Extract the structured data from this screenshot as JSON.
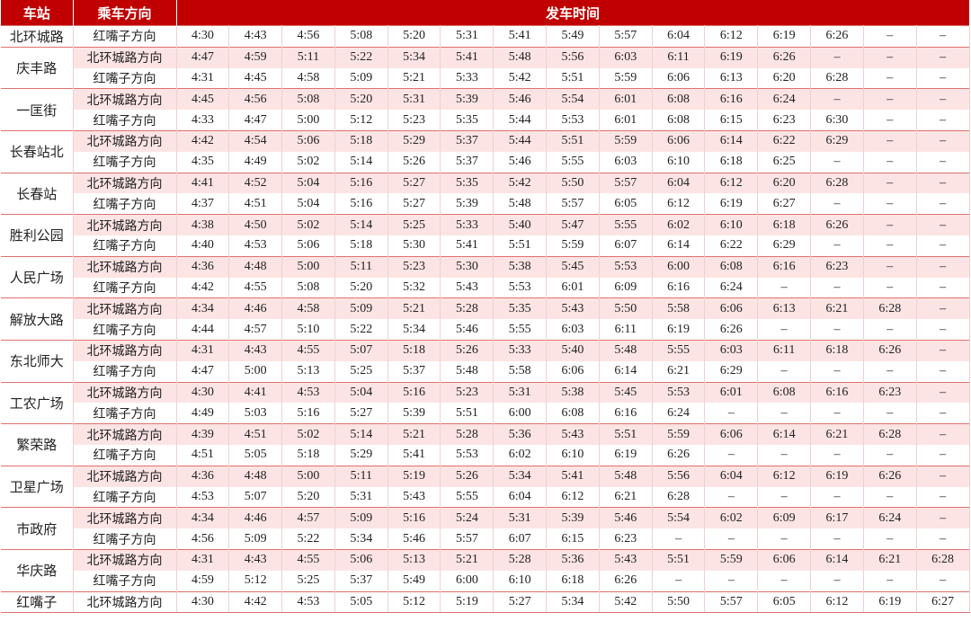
{
  "header": {
    "station": "车站",
    "direction": "乘车方向",
    "times": "发车时间"
  },
  "stations": [
    {
      "name": "北环城路",
      "rows": [
        {
          "direction": "红嘴子方向",
          "times": [
            "4:30",
            "4:43",
            "4:56",
            "5:08",
            "5:20",
            "5:31",
            "5:41",
            "5:49",
            "5:57",
            "6:04",
            "6:12",
            "6:19",
            "6:26",
            "–",
            "–"
          ]
        }
      ]
    },
    {
      "name": "庆丰路",
      "rows": [
        {
          "direction": "北环城路方向",
          "times": [
            "4:47",
            "4:59",
            "5:11",
            "5:22",
            "5:34",
            "5:41",
            "5:48",
            "5:56",
            "6:03",
            "6:11",
            "6:19",
            "6:26",
            "–",
            "–",
            "–"
          ]
        },
        {
          "direction": "红嘴子方向",
          "times": [
            "4:31",
            "4:45",
            "4:58",
            "5:09",
            "5:21",
            "5:33",
            "5:42",
            "5:51",
            "5:59",
            "6:06",
            "6:13",
            "6:20",
            "6:28",
            "–",
            "–"
          ]
        }
      ]
    },
    {
      "name": "一匡街",
      "rows": [
        {
          "direction": "北环城路方向",
          "times": [
            "4:45",
            "4:56",
            "5:08",
            "5:20",
            "5:31",
            "5:39",
            "5:46",
            "5:54",
            "6:01",
            "6:08",
            "6:16",
            "6:24",
            "–",
            "–",
            "–"
          ]
        },
        {
          "direction": "红嘴子方向",
          "times": [
            "4:33",
            "4:47",
            "5:00",
            "5:12",
            "5:23",
            "5:35",
            "5:44",
            "5:53",
            "6:01",
            "6:08",
            "6:15",
            "6:23",
            "6:30",
            "–",
            "–"
          ]
        }
      ]
    },
    {
      "name": "长春站北",
      "rows": [
        {
          "direction": "北环城路方向",
          "times": [
            "4:42",
            "4:54",
            "5:06",
            "5:18",
            "5:29",
            "5:37",
            "5:44",
            "5:51",
            "5:59",
            "6:06",
            "6:14",
            "6:22",
            "6:29",
            "–",
            "–"
          ]
        },
        {
          "direction": "红嘴子方向",
          "times": [
            "4:35",
            "4:49",
            "5:02",
            "5:14",
            "5:26",
            "5:37",
            "5:46",
            "5:55",
            "6:03",
            "6:10",
            "6:18",
            "6:25",
            "–",
            "–",
            "–"
          ]
        }
      ]
    },
    {
      "name": "长春站",
      "rows": [
        {
          "direction": "北环城路方向",
          "times": [
            "4:41",
            "4:52",
            "5:04",
            "5:16",
            "5:27",
            "5:35",
            "5:42",
            "5:50",
            "5:57",
            "6:04",
            "6:12",
            "6:20",
            "6:28",
            "–",
            "–"
          ]
        },
        {
          "direction": "红嘴子方向",
          "times": [
            "4:37",
            "4:51",
            "5:04",
            "5:16",
            "5:27",
            "5:39",
            "5:48",
            "5:57",
            "6:05",
            "6:12",
            "6:19",
            "6:27",
            "–",
            "–",
            "–"
          ]
        }
      ]
    },
    {
      "name": "胜利公园",
      "rows": [
        {
          "direction": "北环城路方向",
          "times": [
            "4:38",
            "4:50",
            "5:02",
            "5:14",
            "5:25",
            "5:33",
            "5:40",
            "5:47",
            "5:55",
            "6:02",
            "6:10",
            "6:18",
            "6:26",
            "–",
            "–"
          ]
        },
        {
          "direction": "红嘴子方向",
          "times": [
            "4:40",
            "4:53",
            "5:06",
            "5:18",
            "5:30",
            "5:41",
            "5:51",
            "5:59",
            "6:07",
            "6:14",
            "6:22",
            "6:29",
            "–",
            "–",
            "–"
          ]
        }
      ]
    },
    {
      "name": "人民广场",
      "rows": [
        {
          "direction": "北环城路方向",
          "times": [
            "4:36",
            "4:48",
            "5:00",
            "5:11",
            "5:23",
            "5:30",
            "5:38",
            "5:45",
            "5:53",
            "6:00",
            "6:08",
            "6:16",
            "6:23",
            "–",
            "–"
          ]
        },
        {
          "direction": "红嘴子方向",
          "times": [
            "4:42",
            "4:55",
            "5:08",
            "5:20",
            "5:32",
            "5:43",
            "5:53",
            "6:01",
            "6:09",
            "6:16",
            "6:24",
            "–",
            "–",
            "–",
            "–"
          ]
        }
      ]
    },
    {
      "name": "解放大路",
      "rows": [
        {
          "direction": "北环城路方向",
          "times": [
            "4:34",
            "4:46",
            "4:58",
            "5:09",
            "5:21",
            "5:28",
            "5:35",
            "5:43",
            "5:50",
            "5:58",
            "6:06",
            "6:13",
            "6:21",
            "6:28",
            "–"
          ]
        },
        {
          "direction": "红嘴子方向",
          "times": [
            "4:44",
            "4:57",
            "5:10",
            "5:22",
            "5:34",
            "5:46",
            "5:55",
            "6:03",
            "6:11",
            "6:19",
            "6:26",
            "–",
            "–",
            "–",
            "–"
          ]
        }
      ]
    },
    {
      "name": "东北师大",
      "rows": [
        {
          "direction": "北环城路方向",
          "times": [
            "4:31",
            "4:43",
            "4:55",
            "5:07",
            "5:18",
            "5:26",
            "5:33",
            "5:40",
            "5:48",
            "5:55",
            "6:03",
            "6:11",
            "6:18",
            "6:26",
            "–"
          ]
        },
        {
          "direction": "红嘴子方向",
          "times": [
            "4:47",
            "5:00",
            "5:13",
            "5:25",
            "5:37",
            "5:48",
            "5:58",
            "6:06",
            "6:14",
            "6:21",
            "6:29",
            "–",
            "–",
            "–",
            "–"
          ]
        }
      ]
    },
    {
      "name": "工农广场",
      "rows": [
        {
          "direction": "北环城路方向",
          "times": [
            "4:30",
            "4:41",
            "4:53",
            "5:04",
            "5:16",
            "5:23",
            "5:31",
            "5:38",
            "5:45",
            "5:53",
            "6:01",
            "6:08",
            "6:16",
            "6:23",
            "–"
          ]
        },
        {
          "direction": "红嘴子方向",
          "times": [
            "4:49",
            "5:03",
            "5:16",
            "5:27",
            "5:39",
            "5:51",
            "6:00",
            "6:08",
            "6:16",
            "6:24",
            "–",
            "–",
            "–",
            "–",
            "–"
          ]
        }
      ]
    },
    {
      "name": "繁荣路",
      "rows": [
        {
          "direction": "北环城路方向",
          "times": [
            "4:39",
            "4:51",
            "5:02",
            "5:14",
            "5:21",
            "5:28",
            "5:36",
            "5:43",
            "5:51",
            "5:59",
            "6:06",
            "6:14",
            "6:21",
            "6:28",
            "–"
          ]
        },
        {
          "direction": "红嘴子方向",
          "times": [
            "4:51",
            "5:05",
            "5:18",
            "5:29",
            "5:41",
            "5:53",
            "6:02",
            "6:10",
            "6:19",
            "6:26",
            "–",
            "–",
            "–",
            "–",
            "–"
          ]
        }
      ]
    },
    {
      "name": "卫星广场",
      "rows": [
        {
          "direction": "北环城路方向",
          "times": [
            "4:36",
            "4:48",
            "5:00",
            "5:11",
            "5:19",
            "5:26",
            "5:34",
            "5:41",
            "5:48",
            "5:56",
            "6:04",
            "6:12",
            "6:19",
            "6:26",
            "–"
          ]
        },
        {
          "direction": "红嘴子方向",
          "times": [
            "4:53",
            "5:07",
            "5:20",
            "5:31",
            "5:43",
            "5:55",
            "6:04",
            "6:12",
            "6:21",
            "6:28",
            "–",
            "–",
            "–",
            "–",
            "–"
          ]
        }
      ]
    },
    {
      "name": "市政府",
      "rows": [
        {
          "direction": "北环城路方向",
          "times": [
            "4:34",
            "4:46",
            "4:57",
            "5:09",
            "5:16",
            "5:24",
            "5:31",
            "5:39",
            "5:46",
            "5:54",
            "6:02",
            "6:09",
            "6:17",
            "6:24",
            "–"
          ]
        },
        {
          "direction": "红嘴子方向",
          "times": [
            "4:56",
            "5:09",
            "5:22",
            "5:34",
            "5:46",
            "5:57",
            "6:07",
            "6:15",
            "6:23",
            "–",
            "–",
            "–",
            "–",
            "–",
            "–"
          ]
        }
      ]
    },
    {
      "name": "华庆路",
      "rows": [
        {
          "direction": "北环城路方向",
          "times": [
            "4:31",
            "4:43",
            "4:55",
            "5:06",
            "5:13",
            "5:21",
            "5:28",
            "5:36",
            "5:43",
            "5:51",
            "5:59",
            "6:06",
            "6:14",
            "6:21",
            "6:28"
          ]
        },
        {
          "direction": "红嘴子方向",
          "times": [
            "4:59",
            "5:12",
            "5:25",
            "5:37",
            "5:49",
            "6:00",
            "6:10",
            "6:18",
            "6:26",
            "–",
            "–",
            "–",
            "–",
            "–",
            "–"
          ]
        }
      ]
    },
    {
      "name": "红嘴子",
      "rows": [
        {
          "direction": "北环城路方向",
          "times": [
            "4:30",
            "4:42",
            "4:53",
            "5:05",
            "5:12",
            "5:19",
            "5:27",
            "5:34",
            "5:42",
            "5:50",
            "5:57",
            "6:05",
            "6:12",
            "6:19",
            "6:27"
          ]
        }
      ]
    }
  ]
}
